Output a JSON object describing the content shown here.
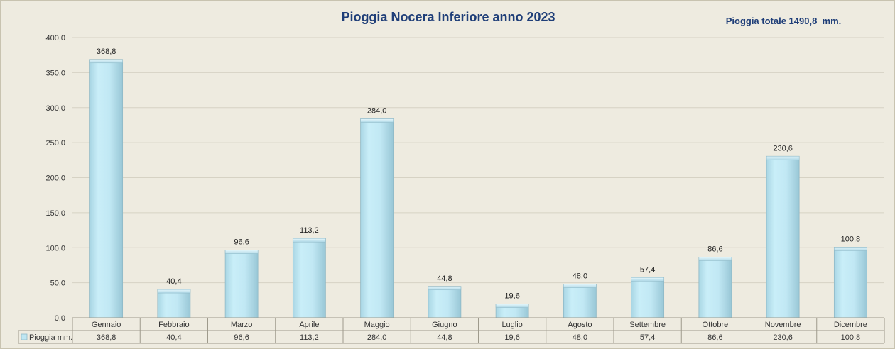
{
  "chart_data": {
    "type": "bar",
    "title": "Pioggia Nocera Inferiore anno 2023",
    "total_note": "Pioggia totale 1490,8  mm.",
    "categories": [
      "Gennaio",
      "Febbraio",
      "Marzo",
      "Aprile",
      "Maggio",
      "Giugno",
      "Luglio",
      "Agosto",
      "Settembre",
      "Ottobre",
      "Novembre",
      "Dicembre"
    ],
    "series": [
      {
        "name": "Pioggia mm.",
        "values": [
          368.8,
          40.4,
          96.6,
          113.2,
          284.0,
          44.8,
          19.6,
          48.0,
          57.4,
          86.6,
          230.6,
          100.8
        ],
        "labels": [
          "368,8",
          "40,4",
          "96,6",
          "113,2",
          "284,0",
          "44,8",
          "19,6",
          "48,0",
          "57,4",
          "86,6",
          "230,6",
          "100,8"
        ]
      }
    ],
    "ylim": [
      0,
      400
    ],
    "yticks": [
      0,
      50,
      100,
      150,
      200,
      250,
      300,
      350,
      400
    ],
    "ytick_labels": [
      "0,0",
      "50,0",
      "100,0",
      "150,0",
      "200,0",
      "250,0",
      "300,0",
      "350,0",
      "400,0"
    ],
    "grid": true,
    "data_table": true,
    "colors": {
      "bar": "#bfe6f2",
      "bar_edge": "#8fb8c6",
      "title": "#1f3e78",
      "grid": "#d6d2c4",
      "background": "#eeebe0"
    }
  }
}
